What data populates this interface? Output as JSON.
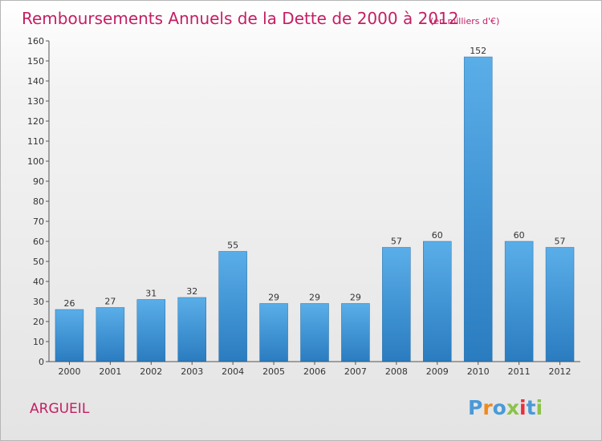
{
  "chart_data": {
    "type": "bar",
    "title": "Remboursements Annuels de la Dette de 2000 à 2012",
    "subtitle": "(en milliers d'€)",
    "categories": [
      "2000",
      "2001",
      "2002",
      "2003",
      "2004",
      "2005",
      "2006",
      "2007",
      "2008",
      "2009",
      "2010",
      "2011",
      "2012"
    ],
    "values": [
      26,
      27,
      31,
      32,
      55,
      29,
      29,
      29,
      57,
      60,
      152,
      60,
      57
    ],
    "ylim": [
      0,
      160
    ],
    "yticks": [
      0,
      10,
      20,
      30,
      40,
      50,
      60,
      70,
      80,
      90,
      100,
      110,
      120,
      130,
      140,
      150,
      160
    ],
    "grid": false,
    "bar_color_top": "#5aaee8",
    "bar_color_bottom": "#2a7cc0"
  },
  "commune": "ARGUEIL",
  "logo": {
    "text": "Proxiti",
    "letters": [
      "P",
      "r",
      "o",
      "x",
      "i",
      "t",
      "i"
    ],
    "colors": [
      "#4a9ad8",
      "#f08a1c",
      "#4a9ad8",
      "#8bc34a",
      "#e8303a",
      "#4a9ad8",
      "#8bc34a"
    ]
  }
}
